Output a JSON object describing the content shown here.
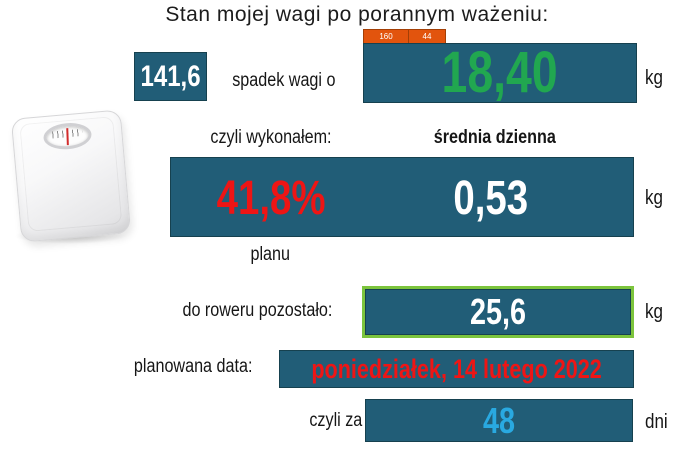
{
  "title": "Stan mojej wagi po porannym ważeniu:",
  "colors": {
    "panel-blue": "#215D77",
    "panel-border": "#16414F",
    "value-green": "#21A750",
    "value-red": "#EE1515",
    "value-lightblue": "#29A9E1",
    "accent-green-border": "#7CC43D",
    "orange": "#E2540D",
    "orange-border": "#A33F06",
    "text-dark": "#161616"
  },
  "reference_cells": {
    "start_value": "160",
    "target_value": "44"
  },
  "current_weight": {
    "value": "141,6"
  },
  "weight_loss": {
    "label": "spadek wagi o",
    "value": "18,40",
    "unit": "kg"
  },
  "plan_progress": {
    "label": "czyli wykonałem:",
    "value": "41,8%",
    "sublabel": "planu"
  },
  "daily_average": {
    "label": "średnia dzienna",
    "value": "0,53",
    "unit": "kg"
  },
  "to_bike": {
    "label": "do roweru pozostało:",
    "value": "25,6",
    "unit": "kg"
  },
  "planned_date": {
    "label": "planowana data:",
    "value": "poniedziałek, 14 lutego 2022"
  },
  "days_left": {
    "label": "czyli za",
    "value": "48",
    "unit": "dni"
  }
}
